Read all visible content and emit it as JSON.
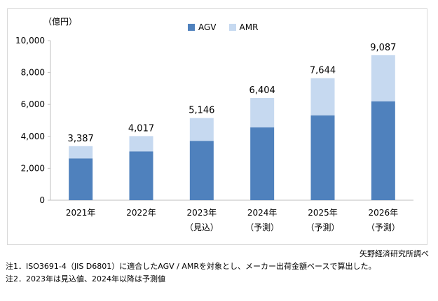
{
  "chart_data": {
    "type": "bar",
    "stacked": true,
    "unit": "（億円）",
    "categories": [
      {
        "year": "2021年",
        "sub": ""
      },
      {
        "year": "2022年",
        "sub": ""
      },
      {
        "year": "2023年",
        "sub": "（見込）"
      },
      {
        "year": "2024年",
        "sub": "（予測）"
      },
      {
        "year": "2025年",
        "sub": "（予測）"
      },
      {
        "year": "2026年",
        "sub": "（予測）"
      }
    ],
    "series": [
      {
        "name": "AGV",
        "color": "#4f81bd",
        "values": [
          2620,
          3060,
          3720,
          4560,
          5320,
          6200
        ]
      },
      {
        "name": "AMR",
        "color": "#c6d9f0",
        "values": [
          767,
          957,
          1426,
          1844,
          2324,
          2887
        ]
      }
    ],
    "totals": [
      "3,387",
      "4,017",
      "5,146",
      "6,404",
      "7,644",
      "9,087"
    ],
    "total_values": [
      3387,
      4017,
      5146,
      6404,
      7644,
      9087
    ],
    "ylim": [
      0,
      10000
    ],
    "yticks": [
      0,
      2000,
      4000,
      6000,
      8000,
      10000
    ],
    "ytick_labels": [
      "0",
      "2,000",
      "4,000",
      "6,000",
      "8,000",
      "10,000"
    ],
    "legend_position": "top-center",
    "grid": false
  },
  "source": "矢野経済研究所調べ",
  "notes": [
    "注1．ISO3691-4（JIS D6801）に適合したAGV / AMRを対象とし、メーカー出荷金額ベースで算出した。",
    "注2．2023年は見込値、2024年以降は予測値"
  ]
}
